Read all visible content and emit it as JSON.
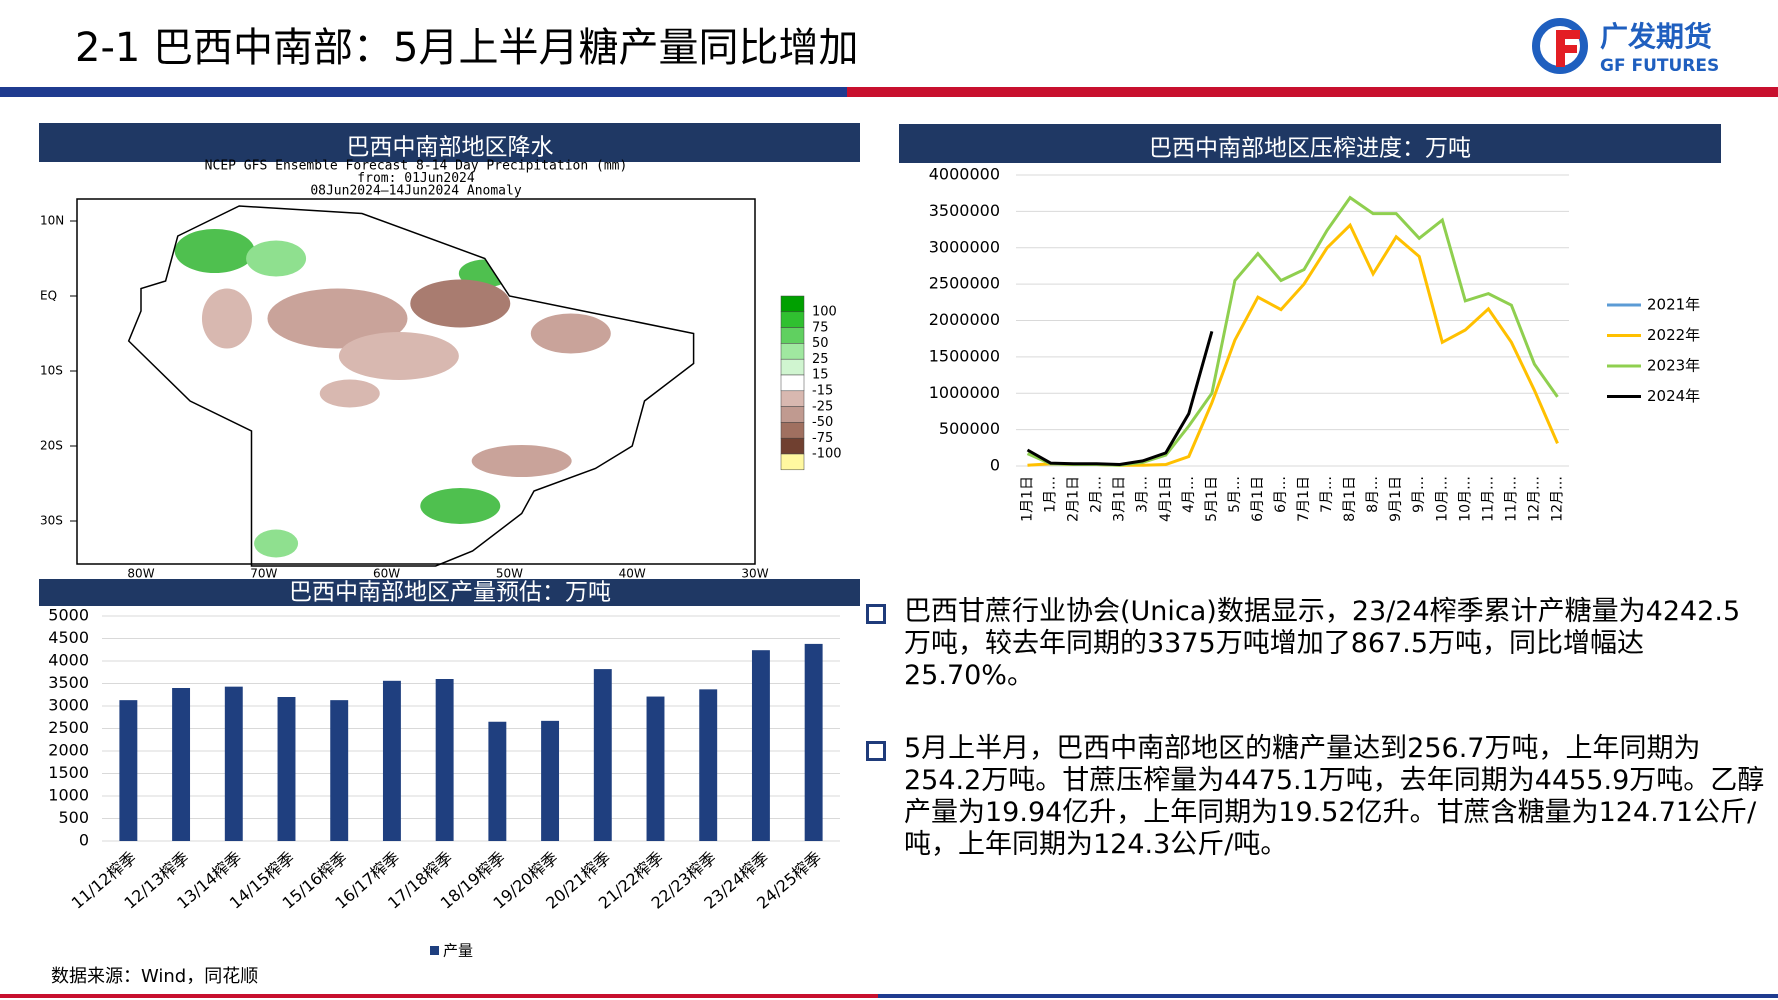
{
  "header": {
    "title": "2-1 巴西中南部：5月上半月糖产量同比增加",
    "logo_cn": "广发期货",
    "logo_en": "GF FUTURES"
  },
  "map": {
    "header": "巴西中南部地区降水",
    "lines": [
      "NCEP GFS Ensemble Forecast 8-14 Day Precipitation (mm)",
      "from: 01Jun2024",
      "08Jun2024—14Jun2024 Anomaly"
    ],
    "lat_labels": [
      "10N",
      "EQ",
      "10S",
      "20S",
      "30S"
    ],
    "lon_labels": [
      "80W",
      "70W",
      "60W",
      "50W",
      "40W",
      "30W"
    ],
    "legend_labels": [
      "100",
      "75",
      "50",
      "25",
      "15",
      "-15",
      "-25",
      "-50",
      "-75",
      "-100"
    ]
  },
  "line_chart": {
    "chart_data": {
      "type": "line",
      "title": "巴西中南部地区压榨进度：万吨",
      "categories": [
        "1月1日",
        "1月…",
        "2月1日",
        "2月…",
        "3月1日",
        "3月…",
        "4月1日",
        "4月…",
        "5月1日",
        "5月…",
        "6月1日",
        "6月…",
        "7月1日",
        "7月…",
        "8月1日",
        "8月…",
        "9月1日",
        "9月…",
        "10月…",
        "10月…",
        "11月…",
        "11月…",
        "12月…",
        "12月…"
      ],
      "series": [
        {
          "name": "2021年",
          "color": "#5b9bd5",
          "values": [
            null,
            null,
            null,
            null,
            null,
            null,
            null,
            null,
            null,
            null,
            null,
            null,
            null,
            null,
            null,
            null,
            null,
            null,
            null,
            null,
            null,
            null,
            null,
            null
          ]
        },
        {
          "name": "2022年",
          "color": "#ffc000",
          "values": [
            10000,
            30000,
            20000,
            20000,
            10000,
            10000,
            20000,
            130000,
            870000,
            1730000,
            2320000,
            2150000,
            2500000,
            3000000,
            3310000,
            2640000,
            3150000,
            2880000,
            1700000,
            1870000,
            2160000,
            1700000,
            1040000,
            310000
          ]
        },
        {
          "name": "2023年",
          "color": "#8fcf4f",
          "values": [
            170000,
            30000,
            20000,
            20000,
            10000,
            50000,
            150000,
            550000,
            1000000,
            2550000,
            2920000,
            2550000,
            2700000,
            3240000,
            3690000,
            3470000,
            3470000,
            3130000,
            3380000,
            2270000,
            2370000,
            2210000,
            1400000,
            950000
          ]
        },
        {
          "name": "2024年",
          "color": "#000000",
          "values": [
            220000,
            40000,
            30000,
            30000,
            20000,
            70000,
            180000,
            720000,
            1850000,
            null,
            null,
            null,
            null,
            null,
            null,
            null,
            null,
            null,
            null,
            null,
            null,
            null,
            null,
            null
          ]
        }
      ],
      "ylim": [
        0,
        4000000
      ],
      "yticks": [
        0,
        500000,
        1000000,
        1500000,
        2000000,
        2500000,
        3000000,
        3500000,
        4000000
      ],
      "grid": true,
      "legend": "right"
    }
  },
  "bar_chart": {
    "chart_data": {
      "type": "bar",
      "title": "巴西中南部地区产量预估：万吨",
      "categories": [
        "11/12榨季",
        "12/13榨季",
        "13/14榨季",
        "14/15榨季",
        "15/16榨季",
        "16/17榨季",
        "17/18榨季",
        "18/19榨季",
        "19/20榨季",
        "20/21榨季",
        "21/22榨季",
        "22/23榨季",
        "23/24榨季",
        "24/25榨季"
      ],
      "series": [
        {
          "name": "产量",
          "color": "#1f3f7f",
          "values": [
            3130,
            3400,
            3430,
            3200,
            3130,
            3560,
            3600,
            2650,
            2670,
            3820,
            3210,
            3370,
            4240,
            4380
          ]
        }
      ],
      "ylim": [
        0,
        5000
      ],
      "yticks": [
        0,
        500,
        1000,
        1500,
        2000,
        2500,
        3000,
        3500,
        4000,
        4500,
        5000
      ],
      "grid": true,
      "legend": "bottom"
    }
  },
  "bullets": [
    "巴西甘蔗行业协会(Unica)数据显示，23/24榨季累计产糖量为4242.5万吨，较去年同期的3375万吨增加了867.5万吨，同比增幅达25.70%。",
    "5月上半月，巴西中南部地区的糖产量达到256.7万吨，上年同期为254.2万吨。甘蔗压榨量为4475.1万吨，去年同期为4455.9万吨。乙醇产量为19.94亿升，上年同期为19.52亿升。甘蔗含糖量为124.71公斤/吨，上年同期为124.3公斤/吨。"
  ],
  "source": "数据来源：Wind，同花顺"
}
